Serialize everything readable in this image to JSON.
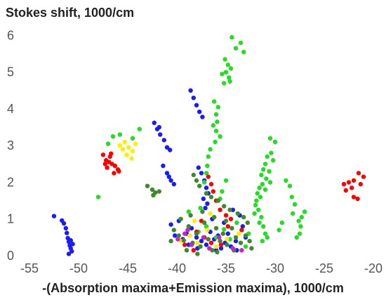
{
  "chart_data": {
    "type": "scatter",
    "title": "",
    "ylabel": "Stokes shift, 1000/cm",
    "xlabel": "-(Absorption maxima+Emission maxima), 1000/cm",
    "xlim": [
      -55,
      -20
    ],
    "ylim": [
      0,
      6.2
    ],
    "x_ticks": [
      -55,
      -50,
      -45,
      -40,
      -35,
      -30,
      -25,
      -20
    ],
    "y_ticks": [
      0,
      1,
      2,
      3,
      4,
      5,
      6
    ],
    "x_tick_labels": [
      "-55",
      "-50",
      "-45",
      "-40",
      "-35",
      "-30",
      "-25",
      "-20"
    ],
    "y_tick_labels": [
      "0",
      "1",
      "2",
      "3",
      "4",
      "5",
      "6"
    ],
    "grid": false,
    "legend": "none",
    "series": [
      {
        "color": "#1a1aff",
        "points": [
          [
            -52.5,
            1.08
          ],
          [
            -51.7,
            0.96
          ],
          [
            -51.5,
            0.88
          ],
          [
            -51.3,
            0.75
          ],
          [
            -51.2,
            0.62
          ],
          [
            -51.1,
            0.48
          ],
          [
            -51.0,
            0.38
          ],
          [
            -50.9,
            0.28
          ],
          [
            -50.8,
            0.2
          ],
          [
            -50.7,
            0.12
          ],
          [
            -51.0,
            0.05
          ],
          [
            -50.8,
            0.42
          ],
          [
            -50.6,
            0.32
          ],
          [
            -42.3,
            3.62
          ],
          [
            -42.0,
            3.45
          ],
          [
            -41.7,
            3.3
          ],
          [
            -41.3,
            3.15
          ],
          [
            -41.0,
            2.95
          ],
          [
            -40.7,
            2.88
          ],
          [
            -41.8,
            3.5
          ],
          [
            -41.4,
            2.45
          ],
          [
            -41.0,
            2.25
          ],
          [
            -40.6,
            2.05
          ],
          [
            -40.3,
            1.95
          ],
          [
            -40.8,
            2.15
          ],
          [
            -38.6,
            4.5
          ],
          [
            -38.3,
            4.3
          ],
          [
            -38.0,
            4.1
          ],
          [
            -37.7,
            3.92
          ],
          [
            -37.4,
            3.78
          ],
          [
            -37.8,
            2.4
          ],
          [
            -37.5,
            2.25
          ],
          [
            -37.2,
            2.05
          ],
          [
            -37.0,
            1.85
          ],
          [
            -36.8,
            1.7
          ],
          [
            -37.3,
            1.55
          ],
          [
            -36.9,
            1.42
          ],
          [
            -37.1,
            1.3
          ],
          [
            -39.0,
            0.6
          ],
          [
            -38.5,
            0.75
          ],
          [
            -38.0,
            0.5
          ],
          [
            -37.5,
            0.4
          ],
          [
            -37.0,
            0.3
          ],
          [
            -36.6,
            0.65
          ],
          [
            -36.2,
            0.45
          ],
          [
            -35.8,
            0.55
          ],
          [
            -35.5,
            0.2
          ],
          [
            -35.1,
            0.35
          ],
          [
            -34.8,
            0.6
          ],
          [
            -34.5,
            0.25
          ],
          [
            -34.0,
            0.4
          ],
          [
            -33.6,
            1.1
          ],
          [
            -33.3,
            0.8
          ],
          [
            -33.0,
            0.5
          ],
          [
            -36.0,
            0.15
          ],
          [
            -37.9,
            0.2
          ],
          [
            -38.8,
            0.3
          ],
          [
            -39.4,
            0.45
          ],
          [
            -40.2,
            0.55
          ],
          [
            -40.6,
            0.85
          ],
          [
            -39.8,
            0.95
          ],
          [
            -36.4,
            1.0
          ],
          [
            -35.2,
            0.9
          ],
          [
            -34.3,
            1.25
          ],
          [
            -33.9,
            0.15
          ]
        ]
      },
      {
        "color": "#22dd22",
        "points": [
          [
            -34.4,
            5.95
          ],
          [
            -33.5,
            5.8
          ],
          [
            -34.0,
            5.65
          ],
          [
            -35.1,
            5.35
          ],
          [
            -34.8,
            5.2
          ],
          [
            -34.5,
            5.1
          ],
          [
            -35.0,
            5.0
          ],
          [
            -35.4,
            4.95
          ],
          [
            -34.7,
            4.85
          ],
          [
            -33.2,
            5.55
          ],
          [
            -34.6,
            4.75
          ],
          [
            -35.2,
            4.7
          ],
          [
            -36.2,
            4.2
          ],
          [
            -35.8,
            4.05
          ],
          [
            -36.0,
            3.85
          ],
          [
            -35.9,
            3.65
          ],
          [
            -36.3,
            3.55
          ],
          [
            -36.0,
            3.4
          ],
          [
            -35.6,
            3.25
          ],
          [
            -36.1,
            3.1
          ],
          [
            -36.6,
            2.9
          ],
          [
            -36.8,
            2.7
          ],
          [
            -36.9,
            2.45
          ],
          [
            -37.0,
            2.25
          ],
          [
            -37.2,
            2.0
          ],
          [
            -35.0,
            2.05
          ],
          [
            -35.4,
            1.75
          ],
          [
            -35.6,
            1.55
          ],
          [
            -30.5,
            3.2
          ],
          [
            -30.0,
            3.1
          ],
          [
            -30.4,
            2.8
          ],
          [
            -30.8,
            2.7
          ],
          [
            -31.0,
            2.5
          ],
          [
            -31.2,
            2.35
          ],
          [
            -30.6,
            2.3
          ],
          [
            -31.4,
            2.2
          ],
          [
            -30.9,
            2.1
          ],
          [
            -31.3,
            1.95
          ],
          [
            -31.6,
            1.85
          ],
          [
            -31.0,
            1.8
          ],
          [
            -31.8,
            1.7
          ],
          [
            -31.5,
            1.6
          ],
          [
            -31.9,
            1.5
          ],
          [
            -32.0,
            1.38
          ],
          [
            -31.7,
            1.25
          ],
          [
            -32.1,
            1.15
          ],
          [
            -31.4,
            1.05
          ],
          [
            -31.6,
            0.9
          ],
          [
            -31.2,
            0.8
          ],
          [
            -31.0,
            0.6
          ],
          [
            -30.8,
            0.5
          ],
          [
            -31.3,
            0.4
          ],
          [
            -30.5,
            2.0
          ],
          [
            -30.2,
            2.6
          ],
          [
            -28.9,
            2.05
          ],
          [
            -28.5,
            1.9
          ],
          [
            -28.3,
            1.6
          ],
          [
            -28.0,
            1.4
          ],
          [
            -28.2,
            1.15
          ],
          [
            -27.6,
            0.95
          ],
          [
            -27.4,
            0.8
          ],
          [
            -27.5,
            0.6
          ],
          [
            -27.8,
            0.5
          ],
          [
            -27.0,
            1.2
          ],
          [
            -27.3,
            1.05
          ],
          [
            -29.3,
            0.9
          ],
          [
            -29.6,
            0.7
          ],
          [
            -45.8,
            3.3
          ],
          [
            -46.5,
            3.25
          ],
          [
            -47.0,
            3.05
          ],
          [
            -44.5,
            3.2
          ],
          [
            -43.8,
            3.45
          ],
          [
            -48.0,
            1.6
          ],
          [
            -38.5,
            0.3
          ],
          [
            -37.8,
            0.65
          ],
          [
            -37.0,
            0.8
          ],
          [
            -36.0,
            0.5
          ],
          [
            -35.2,
            0.72
          ],
          [
            -34.6,
            0.45
          ],
          [
            -33.9,
            0.9
          ],
          [
            -33.0,
            0.25
          ],
          [
            -32.7,
            0.6
          ],
          [
            -38.8,
            1.2
          ],
          [
            -37.6,
            1.3
          ]
        ]
      },
      {
        "color": "#ff0000",
        "points": [
          [
            -47.5,
            2.75
          ],
          [
            -47.2,
            2.6
          ],
          [
            -46.9,
            2.55
          ],
          [
            -46.6,
            2.5
          ],
          [
            -46.3,
            2.45
          ],
          [
            -46.0,
            2.35
          ],
          [
            -46.8,
            2.7
          ],
          [
            -47.1,
            2.4
          ],
          [
            -46.4,
            2.25
          ],
          [
            -45.9,
            2.3
          ],
          [
            -46.7,
            2.78
          ],
          [
            -47.3,
            2.5
          ],
          [
            -21.5,
            2.25
          ],
          [
            -21.0,
            2.15
          ],
          [
            -22.0,
            2.05
          ],
          [
            -22.5,
            2.0
          ],
          [
            -23.0,
            1.95
          ],
          [
            -22.2,
            1.85
          ],
          [
            -21.3,
            1.95
          ],
          [
            -22.8,
            1.78
          ],
          [
            -22.0,
            1.6
          ],
          [
            -21.6,
            1.55
          ],
          [
            -36.8,
            2.15
          ],
          [
            -36.5,
            1.95
          ],
          [
            -36.3,
            1.75
          ],
          [
            -36.0,
            1.5
          ],
          [
            -35.6,
            1.25
          ],
          [
            -35.0,
            1.1
          ],
          [
            -34.5,
            1.0
          ],
          [
            -37.5,
            0.95
          ],
          [
            -38.0,
            0.65
          ],
          [
            -37.2,
            0.5
          ],
          [
            -36.5,
            0.35
          ],
          [
            -35.5,
            0.3
          ],
          [
            -34.8,
            0.8
          ],
          [
            -39.2,
            0.3
          ],
          [
            -38.3,
            0.15
          ],
          [
            -33.4,
            0.7
          ]
        ]
      },
      {
        "color": "#ffee00",
        "points": [
          [
            -45.8,
            3.0
          ],
          [
            -45.3,
            3.1
          ],
          [
            -44.9,
            2.95
          ],
          [
            -44.5,
            2.85
          ],
          [
            -45.1,
            2.75
          ],
          [
            -44.6,
            2.65
          ],
          [
            -45.5,
            2.9
          ],
          [
            -44.2,
            3.05
          ],
          [
            -39.6,
            0.4
          ],
          [
            -38.7,
            0.55
          ],
          [
            -37.9,
            0.35
          ],
          [
            -36.9,
            0.7
          ],
          [
            -36.0,
            0.25
          ],
          [
            -34.9,
            0.45
          ],
          [
            -33.7,
            0.6
          ],
          [
            -38.2,
            0.95
          ],
          [
            -36.6,
            1.15
          ]
        ]
      },
      {
        "color": "#3d8a2a",
        "points": [
          [
            -43.0,
            1.9
          ],
          [
            -42.5,
            1.8
          ],
          [
            -42.2,
            1.72
          ],
          [
            -41.8,
            1.75
          ],
          [
            -42.4,
            1.65
          ],
          [
            -38.3,
            2.2
          ],
          [
            -38.0,
            2.05
          ],
          [
            -37.7,
            1.9
          ],
          [
            -37.0,
            1.7
          ],
          [
            -36.5,
            1.6
          ],
          [
            -35.8,
            1.5
          ],
          [
            -35.2,
            1.35
          ],
          [
            -34.6,
            1.25
          ],
          [
            -33.8,
            1.15
          ],
          [
            -33.2,
            1.05
          ],
          [
            -32.8,
            0.9
          ],
          [
            -40.3,
            0.7
          ],
          [
            -39.8,
            0.55
          ],
          [
            -39.3,
            0.42
          ],
          [
            -38.8,
            0.8
          ],
          [
            -38.4,
            0.35
          ],
          [
            -38.0,
            0.6
          ],
          [
            -37.6,
            0.25
          ],
          [
            -37.2,
            0.9
          ],
          [
            -36.8,
            0.45
          ],
          [
            -36.4,
            0.15
          ],
          [
            -36.0,
            0.75
          ],
          [
            -35.6,
            0.4
          ],
          [
            -35.3,
            0.6
          ],
          [
            -34.9,
            0.3
          ],
          [
            -34.4,
            0.75
          ],
          [
            -34.0,
            0.5
          ],
          [
            -33.5,
            0.35
          ],
          [
            -33.0,
            0.55
          ],
          [
            -32.6,
            0.4
          ],
          [
            -39.6,
            1.0
          ],
          [
            -38.6,
            1.1
          ],
          [
            -37.4,
            1.2
          ],
          [
            -36.2,
            1.05
          ],
          [
            -35.0,
            0.95
          ],
          [
            -40.6,
            0.4
          ],
          [
            -39.0,
            0.15
          ],
          [
            -37.9,
            0.05
          ],
          [
            -35.9,
            0.1
          ],
          [
            -34.2,
            0.15
          ],
          [
            -32.4,
            0.2
          ]
        ]
      },
      {
        "color": "#cc22cc",
        "points": [
          [
            -39.9,
            0.45
          ],
          [
            -39.2,
            0.6
          ],
          [
            -38.5,
            0.3
          ],
          [
            -37.3,
            0.5
          ],
          [
            -36.7,
            0.2
          ],
          [
            -35.7,
            0.5
          ],
          [
            -34.3,
            0.2
          ],
          [
            -33.4,
            0.15
          ],
          [
            -38.9,
            0.7
          ]
        ]
      }
    ]
  }
}
